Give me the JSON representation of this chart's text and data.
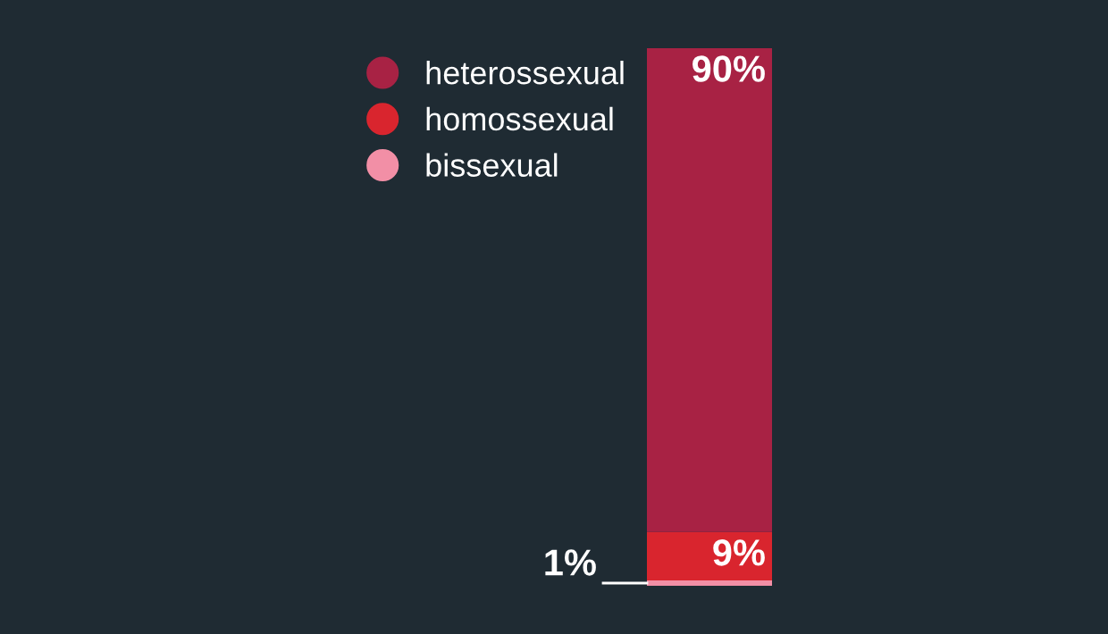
{
  "chart_data": {
    "type": "bar",
    "stacked": true,
    "categories": [
      null
    ],
    "legend": "top left",
    "series": [
      {
        "name": "bissexual",
        "color": "#f28fa6",
        "values": [
          1
        ],
        "value_labels": [
          "1%"
        ]
      },
      {
        "name": "homossexual",
        "color": "#d9252e",
        "values": [
          9
        ],
        "value_labels": [
          "9%"
        ]
      },
      {
        "name": "heterossexual",
        "color": "#a82244",
        "values": [
          90
        ],
        "value_labels": [
          "90%"
        ]
      }
    ]
  }
}
